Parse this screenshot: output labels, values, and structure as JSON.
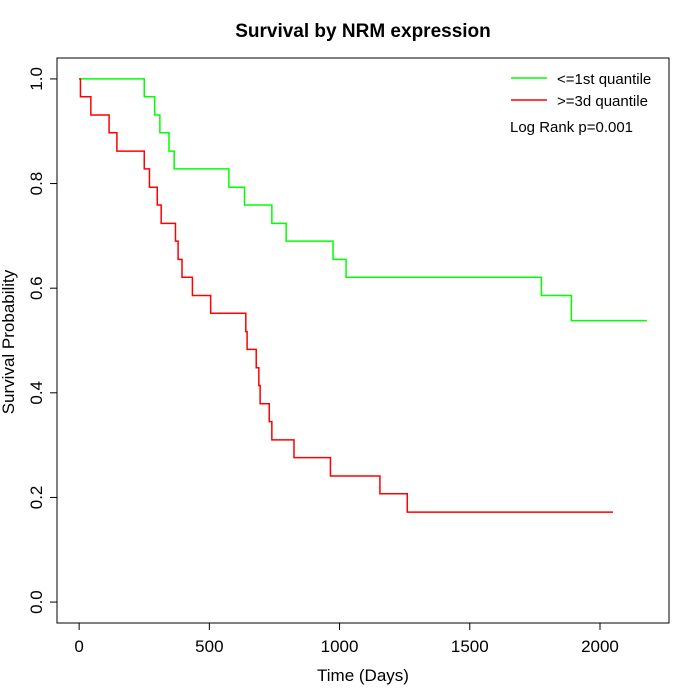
{
  "chart_data": {
    "type": "line",
    "title": "Survival by NRM expression",
    "xlabel": "Time (Days)",
    "ylabel": "Survival Probability",
    "xlim": [
      -85,
      2265
    ],
    "ylim": [
      -0.04,
      1.04
    ],
    "xticks": [
      "0",
      "500",
      "1000",
      "1500",
      "2000"
    ],
    "xtick_values": [
      0,
      500,
      1000,
      1500,
      2000
    ],
    "yticks": [
      "0.0",
      "0.2",
      "0.4",
      "0.6",
      "0.8",
      "1.0"
    ],
    "ytick_values": [
      0,
      0.2,
      0.4,
      0.6,
      0.8,
      1.0
    ],
    "grid": false,
    "legend_position": "top-right",
    "annotation": "Log Rank p=0.001",
    "series": [
      {
        "name": "<=1st quantile",
        "color": "#00ff00",
        "step": true,
        "points": [
          [
            0,
            1.0
          ],
          [
            250,
            0.966
          ],
          [
            290,
            0.931
          ],
          [
            310,
            0.897
          ],
          [
            345,
            0.862
          ],
          [
            365,
            0.828
          ],
          [
            575,
            0.793
          ],
          [
            635,
            0.759
          ],
          [
            740,
            0.724
          ],
          [
            795,
            0.69
          ],
          [
            975,
            0.655
          ],
          [
            1025,
            0.621
          ],
          [
            1775,
            0.586
          ],
          [
            1890,
            0.538
          ],
          [
            2180,
            0.538
          ]
        ]
      },
      {
        "name": ">=3d quantile",
        "color": "#ff0000",
        "step": true,
        "points": [
          [
            0,
            1.0
          ],
          [
            5,
            0.966
          ],
          [
            45,
            0.931
          ],
          [
            115,
            0.897
          ],
          [
            145,
            0.862
          ],
          [
            250,
            0.828
          ],
          [
            270,
            0.793
          ],
          [
            300,
            0.759
          ],
          [
            315,
            0.724
          ],
          [
            370,
            0.69
          ],
          [
            380,
            0.655
          ],
          [
            395,
            0.621
          ],
          [
            435,
            0.586
          ],
          [
            505,
            0.552
          ],
          [
            640,
            0.517
          ],
          [
            645,
            0.483
          ],
          [
            680,
            0.448
          ],
          [
            690,
            0.414
          ],
          [
            695,
            0.379
          ],
          [
            730,
            0.345
          ],
          [
            740,
            0.31
          ],
          [
            825,
            0.276
          ],
          [
            965,
            0.241
          ],
          [
            1155,
            0.207
          ],
          [
            1260,
            0.172
          ],
          [
            2050,
            0.172
          ]
        ]
      }
    ]
  }
}
